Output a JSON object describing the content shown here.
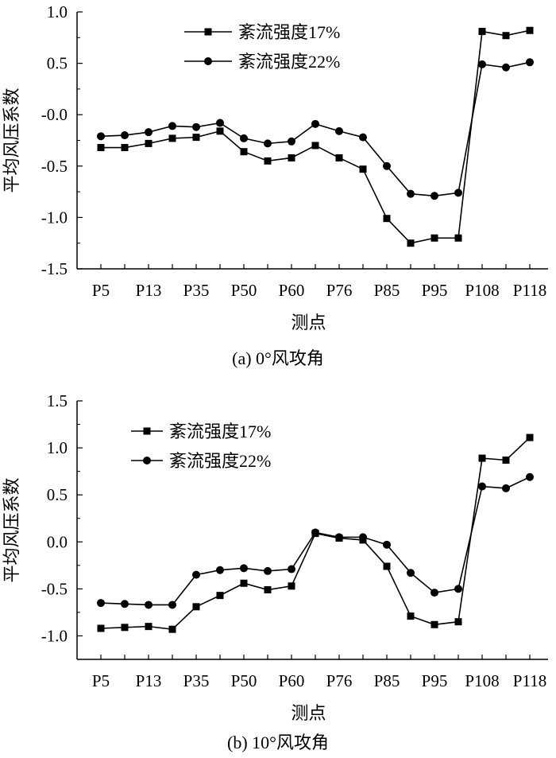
{
  "chart_data": [
    {
      "type": "line",
      "caption": "(a)  0°风攻角",
      "xlabel": "测点",
      "ylabel": "平均风压系数",
      "ylim": [
        -1.5,
        1.0
      ],
      "yticks": [
        "1.0",
        "0.5",
        "-0.0",
        "-0.5",
        "-1.0",
        "-1.5"
      ],
      "ytick_values": [
        1.0,
        0.5,
        0.0,
        -0.5,
        -1.0,
        -1.5
      ],
      "tick_labels": [
        "P5",
        "P13",
        "P35",
        "P50",
        "P60",
        "P76",
        "P85",
        "P95",
        "P108",
        "P118"
      ],
      "legend": {
        "location": "top-center",
        "entries": [
          "紊流强度17%",
          "紊流强度22%"
        ]
      },
      "series": [
        {
          "name": "紊流强度17%",
          "marker": "square",
          "values": [
            -0.32,
            -0.32,
            -0.28,
            -0.23,
            -0.22,
            -0.16,
            -0.36,
            -0.45,
            -0.42,
            -0.3,
            -0.42,
            -0.53,
            -1.01,
            -1.25,
            -1.2,
            -1.2,
            0.81,
            0.77,
            0.82
          ]
        },
        {
          "name": "紊流强度22%",
          "marker": "circle",
          "values": [
            -0.21,
            -0.2,
            -0.17,
            -0.11,
            -0.12,
            -0.08,
            -0.23,
            -0.28,
            -0.26,
            -0.09,
            -0.16,
            -0.22,
            -0.5,
            -0.77,
            -0.79,
            -0.76,
            0.49,
            0.46,
            0.51
          ]
        }
      ]
    },
    {
      "type": "line",
      "caption": "(b)  10°风攻角",
      "xlabel": "测点",
      "ylabel": "平均风压系数",
      "ylim": [
        -1.25,
        1.5
      ],
      "yticks": [
        "1.5",
        "1.0",
        "0.5",
        "0.0",
        "-0.5",
        "-1.0"
      ],
      "ytick_values": [
        1.5,
        1.0,
        0.5,
        0.0,
        -0.5,
        -1.0
      ],
      "tick_labels": [
        "P5",
        "P13",
        "P35",
        "P50",
        "P60",
        "P76",
        "P85",
        "P95",
        "P108",
        "P118"
      ],
      "legend": {
        "location": "top-left",
        "entries": [
          "紊流强度17%",
          "紊流强度22%"
        ]
      },
      "series": [
        {
          "name": "紊流强度17%",
          "marker": "square",
          "values": [
            -0.92,
            -0.91,
            -0.9,
            -0.93,
            -0.69,
            -0.57,
            -0.44,
            -0.51,
            -0.47,
            0.09,
            0.04,
            0.02,
            -0.26,
            -0.79,
            -0.88,
            -0.85,
            0.89,
            0.87,
            1.11
          ]
        },
        {
          "name": "紊流强度22%",
          "marker": "circle",
          "values": [
            -0.65,
            -0.66,
            -0.67,
            -0.67,
            -0.35,
            -0.3,
            -0.28,
            -0.31,
            -0.29,
            0.1,
            0.05,
            0.05,
            -0.03,
            -0.33,
            -0.54,
            -0.5,
            0.59,
            0.57,
            0.69
          ]
        }
      ]
    }
  ]
}
